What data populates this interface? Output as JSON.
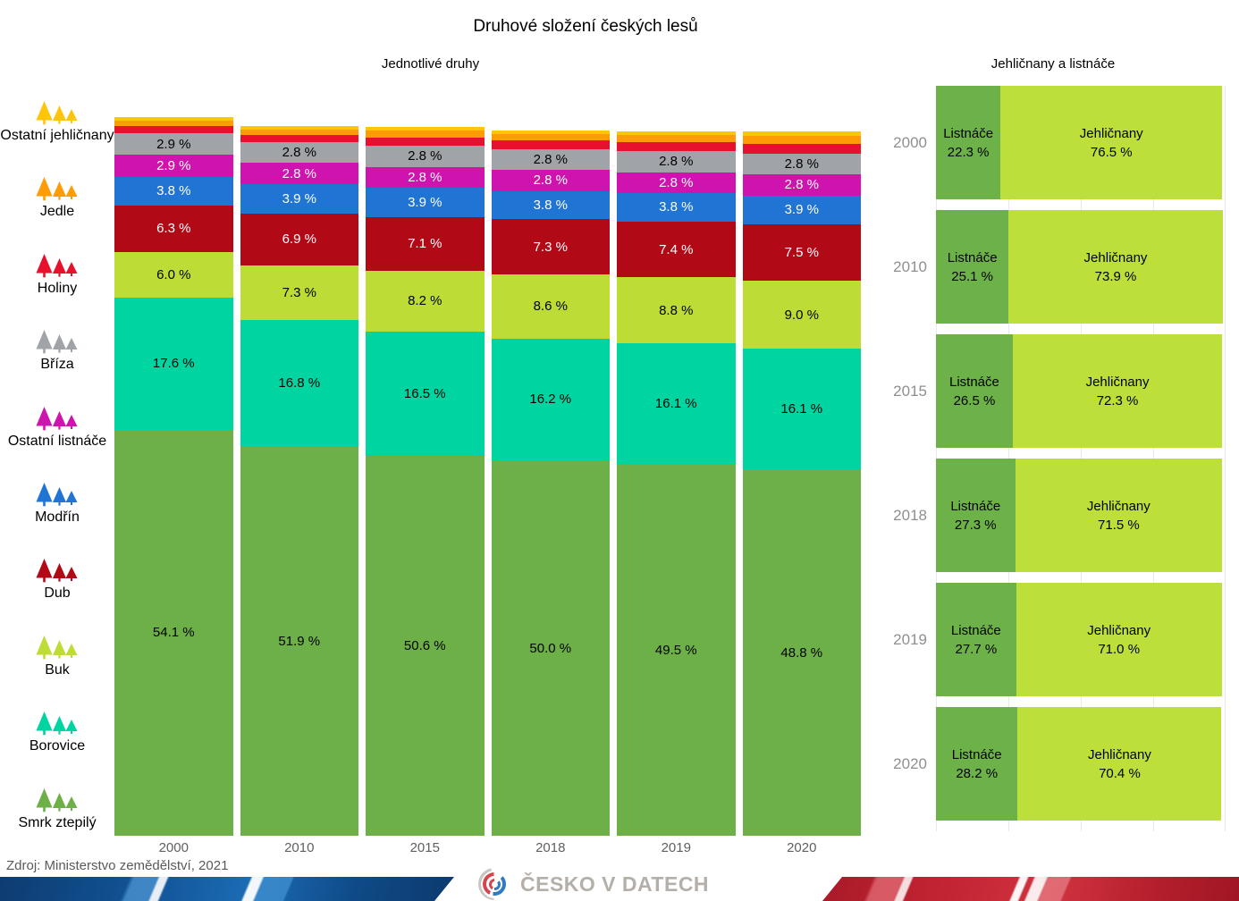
{
  "title": "Druhové složení českých lesů",
  "source": "Zdroj: Ministerstvo zemědělství, 2021",
  "left_chart": {
    "subtitle": "Jednotlivé druhy"
  },
  "right_chart": {
    "subtitle": "Jehličnany a listnáče"
  },
  "footer": {
    "logo_text": "ČESKO V DATECH"
  },
  "legend": {
    "items": [
      {
        "label": "Ostatní jehličnany",
        "color": "#FFC50A"
      },
      {
        "label": "Jedle",
        "color": "#FF9B05"
      },
      {
        "label": "Holiny",
        "color": "#E8112D"
      },
      {
        "label": "Bříza",
        "color": "#A0A3A7"
      },
      {
        "label": "Ostatní listnáče",
        "color": "#CE13AE"
      },
      {
        "label": "Modřín",
        "color": "#2074D4"
      },
      {
        "label": "Dub",
        "color": "#B20917"
      },
      {
        "label": "Buk",
        "color": "#BDDC35"
      },
      {
        "label": "Borovice",
        "color": "#00D5A2"
      },
      {
        "label": "Smrk ztepilý",
        "color": "#6CB047"
      }
    ]
  },
  "chart_data": [
    {
      "type": "bar",
      "stacked": true,
      "title": "Jednotlivé druhy",
      "unit": "%",
      "categories": [
        "2000",
        "2010",
        "2015",
        "2018",
        "2019",
        "2020"
      ],
      "legend_position": "left",
      "grid": false,
      "note": "series listed bottom-to-top of the stack; series with label_visible=false are the thin unlabeled top strips, their values estimated from pixel heights",
      "series": [
        {
          "name": "Smrk ztepilý",
          "color": "#6CB047",
          "label_color": "#000000",
          "label_visible": true,
          "values": [
            54.1,
            51.9,
            50.6,
            50.0,
            49.5,
            48.8
          ]
        },
        {
          "name": "Borovice",
          "color": "#00D5A2",
          "label_color": "#000000",
          "label_visible": true,
          "values": [
            17.6,
            16.8,
            16.5,
            16.2,
            16.1,
            16.1
          ]
        },
        {
          "name": "Buk",
          "color": "#BDDC35",
          "label_color": "#000000",
          "label_visible": true,
          "values": [
            6.0,
            7.3,
            8.2,
            8.6,
            8.8,
            9.0
          ]
        },
        {
          "name": "Dub",
          "color": "#B20917",
          "label_color": "#FFFFFF",
          "label_visible": true,
          "values": [
            6.3,
            6.9,
            7.1,
            7.3,
            7.4,
            7.5
          ]
        },
        {
          "name": "Modřín",
          "color": "#2074D4",
          "label_color": "#FFFFFF",
          "label_visible": true,
          "values": [
            3.8,
            3.9,
            3.9,
            3.8,
            3.8,
            3.9
          ]
        },
        {
          "name": "Ostatní listnáče",
          "color": "#CE13AE",
          "label_color": "#FFFFFF",
          "label_visible": true,
          "values": [
            2.9,
            2.8,
            2.8,
            2.8,
            2.8,
            2.8
          ]
        },
        {
          "name": "Bříza",
          "color": "#A0A3A7",
          "label_color": "#000000",
          "label_visible": true,
          "values": [
            2.9,
            2.8,
            2.8,
            2.8,
            2.8,
            2.8
          ]
        },
        {
          "name": "Holiny",
          "color": "#E8112D",
          "label_visible": false,
          "values": [
            0.9,
            0.9,
            1.1,
            1.1,
            1.2,
            1.3
          ]
        },
        {
          "name": "Jedle",
          "color": "#FF9B05",
          "label_visible": false,
          "values": [
            0.8,
            0.8,
            0.9,
            0.9,
            0.9,
            1.0
          ]
        },
        {
          "name": "Ostatní jehličnany",
          "color": "#FFC50A",
          "label_visible": false,
          "values": [
            0.4,
            0.4,
            0.5,
            0.5,
            0.5,
            0.6
          ]
        }
      ]
    },
    {
      "type": "bar",
      "stacked": true,
      "orientation": "horizontal",
      "title": "Jehličnany a listnáče",
      "unit": "%",
      "categories": [
        "2000",
        "2010",
        "2015",
        "2018",
        "2019",
        "2020"
      ],
      "xlim": [
        0,
        100
      ],
      "grid": true,
      "series": [
        {
          "name": "Listnáče",
          "color": "#6DB249",
          "label_color": "#000000",
          "values": [
            22.3,
            25.1,
            26.5,
            27.3,
            27.7,
            28.2
          ]
        },
        {
          "name": "Jehličnany",
          "color": "#BCE039",
          "label_color": "#000000",
          "values": [
            76.5,
            73.9,
            72.3,
            71.5,
            71.0,
            70.4
          ]
        }
      ]
    }
  ]
}
